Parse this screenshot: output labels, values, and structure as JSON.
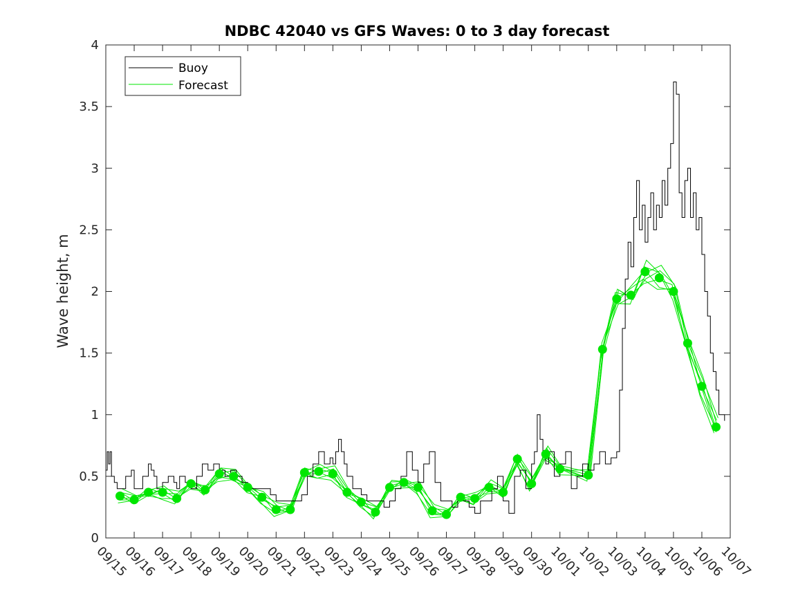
{
  "chart_data": {
    "type": "line",
    "title": "NDBC 42040 vs GFS Waves: 0 to 3 day forecast",
    "xlabel": "",
    "ylabel": "Wave height, m",
    "ylim": [
      0,
      4
    ],
    "yticks": [
      "0",
      "0.5",
      "1",
      "1.5",
      "2",
      "2.5",
      "3",
      "3.5",
      "4"
    ],
    "xticks": [
      "09/15",
      "09/16",
      "09/17",
      "09/18",
      "09/19",
      "09/20",
      "09/21",
      "09/22",
      "09/23",
      "09/24",
      "09/25",
      "09/26",
      "09/27",
      "09/28",
      "09/29",
      "09/30",
      "10/01",
      "10/02",
      "10/03",
      "10/04",
      "10/05",
      "10/06",
      "10/07"
    ],
    "x_unit": "day index from 09/15",
    "grid": false,
    "legend": {
      "placement": "top-left",
      "entries": [
        "Buoy",
        "Forecast"
      ]
    },
    "colors": {
      "buoy": "#000000",
      "forecast": "#00e600"
    },
    "series": [
      {
        "name": "Buoy",
        "x": [
          0,
          0.05,
          0.1,
          0.15,
          0.2,
          0.25,
          0.3,
          0.4,
          0.5,
          0.7,
          0.9,
          1.0,
          1.1,
          1.3,
          1.5,
          1.6,
          1.7,
          1.8,
          1.9,
          2.0,
          2.2,
          2.4,
          2.5,
          2.6,
          2.8,
          3.0,
          3.2,
          3.4,
          3.6,
          3.8,
          4.0,
          4.2,
          4.4,
          4.6,
          4.8,
          5.0,
          5.2,
          5.5,
          5.8,
          6.0,
          6.3,
          6.6,
          6.9,
          7.1,
          7.3,
          7.5,
          7.7,
          7.9,
          8.0,
          8.1,
          8.2,
          8.3,
          8.4,
          8.5,
          8.6,
          8.7,
          8.8,
          8.9,
          9.0,
          9.2,
          9.4,
          9.6,
          9.8,
          10.0,
          10.2,
          10.4,
          10.6,
          10.8,
          11.0,
          11.2,
          11.4,
          11.6,
          11.8,
          12.0,
          12.2,
          12.4,
          12.6,
          12.8,
          13.0,
          13.2,
          13.4,
          13.6,
          13.8,
          14.0,
          14.2,
          14.4,
          14.6,
          14.8,
          15.0,
          15.1,
          15.2,
          15.3,
          15.4,
          15.5,
          15.6,
          15.8,
          16.0,
          16.2,
          16.4,
          16.6,
          16.8,
          17.0,
          17.2,
          17.4,
          17.6,
          17.8,
          18.0,
          18.1,
          18.2,
          18.3,
          18.4,
          18.5,
          18.6,
          18.7,
          18.8,
          18.9,
          19.0,
          19.1,
          19.2,
          19.3,
          19.4,
          19.5,
          19.6,
          19.7,
          19.8,
          19.9,
          20.0,
          20.1,
          20.2,
          20.3,
          20.4,
          20.5,
          20.6,
          20.7,
          20.8,
          20.9,
          21.0,
          21.1,
          21.2,
          21.3,
          21.4,
          21.5,
          21.6,
          21.7,
          21.8
        ],
        "values": [
          0.55,
          0.7,
          0.6,
          0.7,
          0.5,
          0.5,
          0.45,
          0.4,
          0.4,
          0.5,
          0.55,
          0.4,
          0.4,
          0.5,
          0.6,
          0.55,
          0.5,
          0.4,
          0.4,
          0.45,
          0.5,
          0.45,
          0.4,
          0.5,
          0.45,
          0.4,
          0.5,
          0.6,
          0.55,
          0.6,
          0.55,
          0.5,
          0.55,
          0.5,
          0.45,
          0.4,
          0.4,
          0.4,
          0.35,
          0.3,
          0.3,
          0.3,
          0.35,
          0.5,
          0.6,
          0.7,
          0.6,
          0.65,
          0.6,
          0.7,
          0.8,
          0.7,
          0.6,
          0.5,
          0.5,
          0.4,
          0.4,
          0.4,
          0.35,
          0.3,
          0.3,
          0.3,
          0.25,
          0.3,
          0.4,
          0.5,
          0.7,
          0.55,
          0.45,
          0.6,
          0.7,
          0.45,
          0.3,
          0.3,
          0.25,
          0.3,
          0.3,
          0.25,
          0.2,
          0.3,
          0.3,
          0.4,
          0.5,
          0.3,
          0.2,
          0.5,
          0.55,
          0.4,
          0.6,
          0.7,
          1.0,
          0.8,
          0.7,
          0.6,
          0.7,
          0.5,
          0.6,
          0.7,
          0.4,
          0.5,
          0.6,
          0.55,
          0.6,
          0.7,
          0.6,
          0.65,
          0.7,
          1.2,
          1.7,
          2.1,
          2.4,
          2.2,
          2.6,
          2.9,
          2.5,
          2.7,
          2.4,
          2.6,
          2.8,
          2.5,
          2.7,
          2.6,
          2.9,
          2.7,
          3.0,
          3.2,
          3.7,
          3.6,
          2.8,
          2.6,
          2.9,
          3.0,
          2.6,
          2.8,
          2.5,
          2.6,
          2.3,
          2.0,
          1.8,
          1.5,
          1.35,
          1.2,
          1.0,
          1.0,
          0.95
        ]
      },
      {
        "name": "Forecast",
        "markers_x": [
          0.5,
          1.0,
          1.5,
          2.0,
          2.5,
          3.0,
          3.5,
          4.0,
          4.5,
          5.0,
          5.5,
          6.0,
          6.5,
          7.0,
          7.5,
          8.0,
          8.5,
          9.0,
          9.5,
          10.0,
          10.5,
          11.0,
          11.5,
          12.0,
          12.5,
          13.0,
          13.5,
          14.0,
          14.5,
          15.0,
          15.5,
          16.0,
          17.0,
          17.5,
          18.0,
          18.5,
          19.0,
          19.5,
          20.0,
          20.5,
          21.0,
          21.5
        ],
        "markers_y": [
          0.34,
          0.31,
          0.37,
          0.37,
          0.32,
          0.44,
          0.39,
          0.52,
          0.5,
          0.41,
          0.33,
          0.23,
          0.23,
          0.53,
          0.54,
          0.52,
          0.37,
          0.29,
          0.21,
          0.41,
          0.45,
          0.41,
          0.22,
          0.19,
          0.33,
          0.32,
          0.41,
          0.37,
          0.64,
          0.44,
          0.68,
          0.56,
          0.51,
          1.53,
          1.94,
          1.97,
          2.16,
          2.11,
          2.0,
          1.58,
          1.23,
          0.9
        ]
      }
    ]
  }
}
